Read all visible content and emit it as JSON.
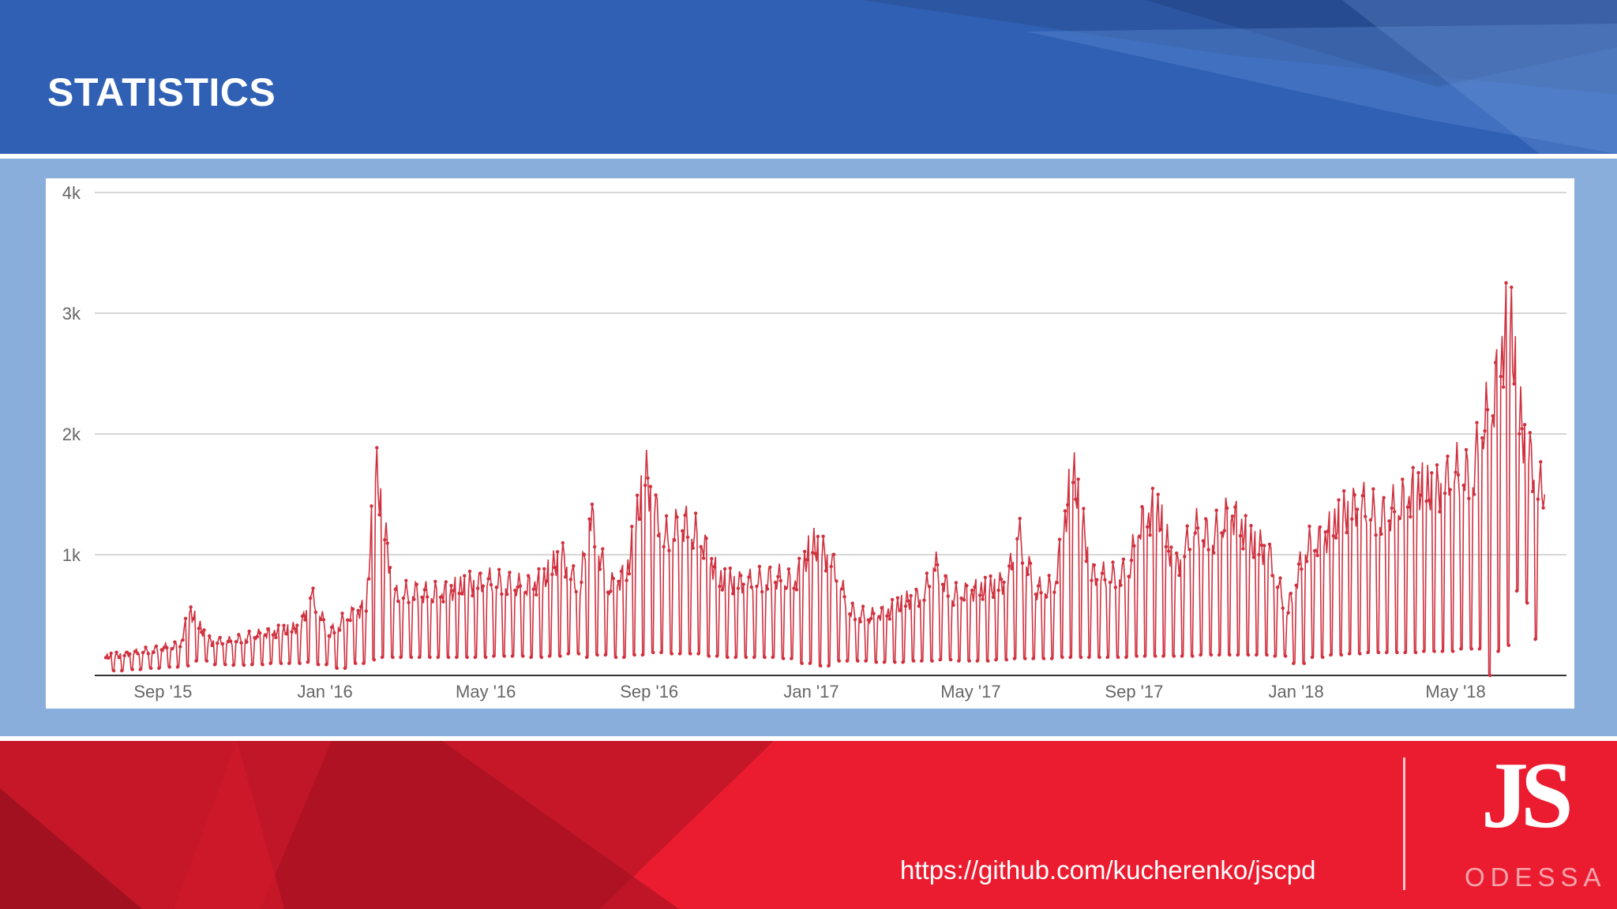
{
  "slide": {
    "title": "STATISTICS",
    "source_link": "https://github.com/kucherenko/jscpd"
  },
  "logo": {
    "mark": "JS",
    "city": "ODESSA"
  },
  "colors": {
    "header_blue": "#3060b4",
    "body_blue": "#8aaedc",
    "footer_red": "#ec1c30",
    "series_red": "#d0313f"
  },
  "chart_data": {
    "type": "line",
    "title": "",
    "xlabel": "",
    "ylabel": "",
    "x_range": [
      "2015-07-20",
      "2018-07-08"
    ],
    "ylim": [
      0,
      4000
    ],
    "y_ticks": [
      {
        "value": 1000,
        "label": "1k"
      },
      {
        "value": 2000,
        "label": "2k"
      },
      {
        "value": 3000,
        "label": "3k"
      },
      {
        "value": 4000,
        "label": "4k"
      }
    ],
    "x_ticks": [
      {
        "date": "2015-09-01",
        "label": "Sep '15"
      },
      {
        "date": "2016-01-01",
        "label": "Jan '16"
      },
      {
        "date": "2016-05-01",
        "label": "May '16"
      },
      {
        "date": "2016-09-01",
        "label": "Sep '16"
      },
      {
        "date": "2017-01-01",
        "label": "Jan '17"
      },
      {
        "date": "2017-05-01",
        "label": "May '17"
      },
      {
        "date": "2017-09-01",
        "label": "Sep '17"
      },
      {
        "date": "2018-01-01",
        "label": "Jan '18"
      },
      {
        "date": "2018-05-01",
        "label": "May '18"
      }
    ],
    "grid": true,
    "legend": "none",
    "series": [
      {
        "color": "#d0313f",
        "weekly": [
          [
            "2015-07-20",
            180,
            40
          ],
          [
            "2015-08-03",
            200,
            50
          ],
          [
            "2015-08-17",
            230,
            60
          ],
          [
            "2015-08-31",
            260,
            70
          ],
          [
            "2015-09-14",
            290,
            80
          ],
          [
            "2015-09-21",
            620,
            120
          ],
          [
            "2015-10-05",
            330,
            90
          ],
          [
            "2015-10-19",
            320,
            85
          ],
          [
            "2015-11-02",
            360,
            90
          ],
          [
            "2015-11-16",
            400,
            100
          ],
          [
            "2015-11-30",
            420,
            100
          ],
          [
            "2015-12-14",
            460,
            110
          ],
          [
            "2015-12-21",
            780,
            90
          ],
          [
            "2016-01-04",
            400,
            60
          ],
          [
            "2016-01-18",
            560,
            100
          ],
          [
            "2016-02-01",
            650,
            130
          ],
          [
            "2016-02-08",
            1980,
            150
          ],
          [
            "2016-02-22",
            760,
            150
          ],
          [
            "2016-03-07",
            800,
            150
          ],
          [
            "2016-03-21",
            780,
            150
          ],
          [
            "2016-04-04",
            800,
            150
          ],
          [
            "2016-04-18",
            860,
            150
          ],
          [
            "2016-05-02",
            900,
            160
          ],
          [
            "2016-05-16",
            880,
            160
          ],
          [
            "2016-05-30",
            840,
            150
          ],
          [
            "2016-06-13",
            900,
            160
          ],
          [
            "2016-06-27",
            1140,
            180
          ],
          [
            "2016-07-11",
            800,
            150
          ],
          [
            "2016-07-18",
            1580,
            170
          ],
          [
            "2016-08-01",
            840,
            150
          ],
          [
            "2016-08-15",
            960,
            170
          ],
          [
            "2016-08-29",
            1920,
            190
          ],
          [
            "2016-09-12",
            1300,
            180
          ],
          [
            "2016-09-26",
            1460,
            180
          ],
          [
            "2016-10-10",
            1300,
            160
          ],
          [
            "2016-10-24",
            900,
            150
          ],
          [
            "2016-11-07",
            880,
            150
          ],
          [
            "2016-11-21",
            900,
            150
          ],
          [
            "2016-12-05",
            940,
            140
          ],
          [
            "2016-12-19",
            880,
            100
          ],
          [
            "2017-01-02",
            1240,
            80
          ],
          [
            "2017-01-16",
            1100,
            120
          ],
          [
            "2017-01-30",
            620,
            120
          ],
          [
            "2017-02-13",
            560,
            110
          ],
          [
            "2017-02-27",
            600,
            110
          ],
          [
            "2017-03-13",
            700,
            120
          ],
          [
            "2017-03-27",
            760,
            120
          ],
          [
            "2017-04-03",
            1080,
            130
          ],
          [
            "2017-04-17",
            760,
            120
          ],
          [
            "2017-05-01",
            800,
            120
          ],
          [
            "2017-05-15",
            820,
            130
          ],
          [
            "2017-05-29",
            900,
            140
          ],
          [
            "2017-06-05",
            1380,
            140
          ],
          [
            "2017-06-19",
            820,
            140
          ],
          [
            "2017-07-03",
            840,
            150
          ],
          [
            "2017-07-17",
            1950,
            150
          ],
          [
            "2017-07-31",
            960,
            150
          ],
          [
            "2017-08-14",
            940,
            150
          ],
          [
            "2017-08-28",
            1000,
            160
          ],
          [
            "2017-09-04",
            1400,
            160
          ],
          [
            "2017-09-18",
            1600,
            160
          ],
          [
            "2017-10-02",
            1000,
            160
          ],
          [
            "2017-10-16",
            1400,
            170
          ],
          [
            "2017-10-30",
            1320,
            170
          ],
          [
            "2017-11-13",
            1560,
            170
          ],
          [
            "2017-11-27",
            1260,
            170
          ],
          [
            "2017-12-11",
            1180,
            160
          ],
          [
            "2017-12-25",
            600,
            100
          ],
          [
            "2018-01-08",
            1220,
            150
          ],
          [
            "2018-01-22",
            1300,
            170
          ],
          [
            "2018-02-05",
            1520,
            180
          ],
          [
            "2018-02-19",
            1640,
            190
          ],
          [
            "2018-03-05",
            1500,
            190
          ],
          [
            "2018-03-19",
            1620,
            190
          ],
          [
            "2018-04-02",
            1780,
            200
          ],
          [
            "2018-04-16",
            1740,
            200
          ],
          [
            "2018-04-30",
            1940,
            220
          ],
          [
            "2018-05-14",
            1900,
            220
          ],
          [
            "2018-05-21",
            2400,
            0
          ],
          [
            "2018-05-28",
            2500,
            200
          ],
          [
            "2018-06-04",
            3020,
            250
          ],
          [
            "2018-06-11",
            3430,
            700
          ],
          [
            "2018-06-18",
            2440,
            600
          ],
          [
            "2018-06-25",
            2120,
            300
          ],
          [
            "2018-07-02",
            1780,
            1500
          ]
        ]
      }
    ]
  }
}
